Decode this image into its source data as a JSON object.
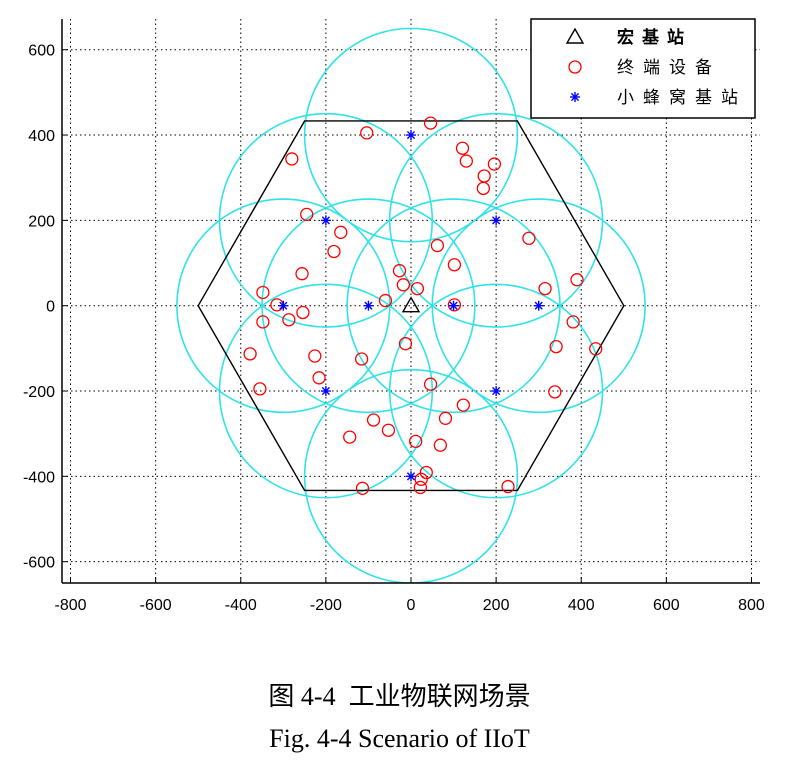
{
  "chart_data": {
    "type": "scatter",
    "xlim": [
      -820,
      820
    ],
    "ylim": [
      -650,
      672
    ],
    "xticks": [
      -800,
      -600,
      -400,
      -200,
      0,
      200,
      400,
      600,
      800
    ],
    "yticks": [
      -600,
      -400,
      -200,
      0,
      200,
      400,
      600
    ],
    "grid": true,
    "legend_position": "top-right",
    "series": [
      {
        "name": "宏基站",
        "marker": "triangle",
        "color": "#000000",
        "points": [
          [
            0,
            0
          ]
        ]
      },
      {
        "name": "终端设备",
        "marker": "circle",
        "color": "#ff0000",
        "points": [
          [
            46,
            428
          ],
          [
            -104,
            405
          ],
          [
            121,
            369
          ],
          [
            130,
            339
          ],
          [
            196,
            332
          ],
          [
            172,
            304
          ],
          [
            170,
            275
          ],
          [
            -280,
            344
          ],
          [
            -245,
            214
          ],
          [
            -165,
            172
          ],
          [
            -181,
            127
          ],
          [
            277,
            158
          ],
          [
            62,
            141
          ],
          [
            102,
            96
          ],
          [
            -256,
            75
          ],
          [
            -27,
            82
          ],
          [
            -18,
            49
          ],
          [
            15,
            40
          ],
          [
            -60,
            12
          ],
          [
            -348,
            31
          ],
          [
            -315,
            2
          ],
          [
            -287,
            -33
          ],
          [
            -254,
            -16
          ],
          [
            -348,
            -38
          ],
          [
            390,
            61
          ],
          [
            315,
            40
          ],
          [
            102,
            2
          ],
          [
            -378,
            -113
          ],
          [
            -226,
            -118
          ],
          [
            -216,
            -169
          ],
          [
            -355,
            -195
          ],
          [
            -116,
            -125
          ],
          [
            -13,
            -89
          ],
          [
            381,
            -38
          ],
          [
            341,
            -96
          ],
          [
            434,
            -101
          ],
          [
            46,
            -184
          ],
          [
            123,
            -233
          ],
          [
            81,
            -264
          ],
          [
            338,
            -202
          ],
          [
            -88,
            -268
          ],
          [
            -53,
            -292
          ],
          [
            -144,
            -308
          ],
          [
            11,
            -318
          ],
          [
            69,
            -327
          ],
          [
            -114,
            -428
          ],
          [
            36,
            -391
          ],
          [
            24,
            -407
          ],
          [
            22,
            -426
          ],
          [
            228,
            -424
          ]
        ]
      },
      {
        "name": "小蜂窝基站",
        "marker": "asterisk",
        "color": "#0000ff",
        "points": [
          [
            0,
            400
          ],
          [
            -200,
            200
          ],
          [
            200,
            200
          ],
          [
            -300,
            0
          ],
          [
            -100,
            0
          ],
          [
            100,
            0
          ],
          [
            300,
            0
          ],
          [
            -200,
            -200
          ],
          [
            200,
            -200
          ],
          [
            0,
            -400
          ]
        ]
      }
    ],
    "hexagon": {
      "color": "#000000",
      "vertices": [
        [
          500,
          0
        ],
        [
          250,
          433
        ],
        [
          -250,
          433
        ],
        [
          -500,
          0
        ],
        [
          -250,
          -433
        ],
        [
          250,
          -433
        ]
      ]
    },
    "coverage_circles": {
      "color": "#2fe3e8",
      "radius": 250,
      "centers": [
        [
          0,
          400
        ],
        [
          -200,
          200
        ],
        [
          200,
          200
        ],
        [
          -300,
          0
        ],
        [
          -100,
          0
        ],
        [
          100,
          0
        ],
        [
          300,
          0
        ],
        [
          -200,
          -200
        ],
        [
          200,
          -200
        ],
        [
          0,
          -400
        ]
      ]
    }
  },
  "caption": {
    "zh": "图 4-4  工业物联网场景",
    "en": "Fig. 4-4 Scenario of IIoT"
  }
}
